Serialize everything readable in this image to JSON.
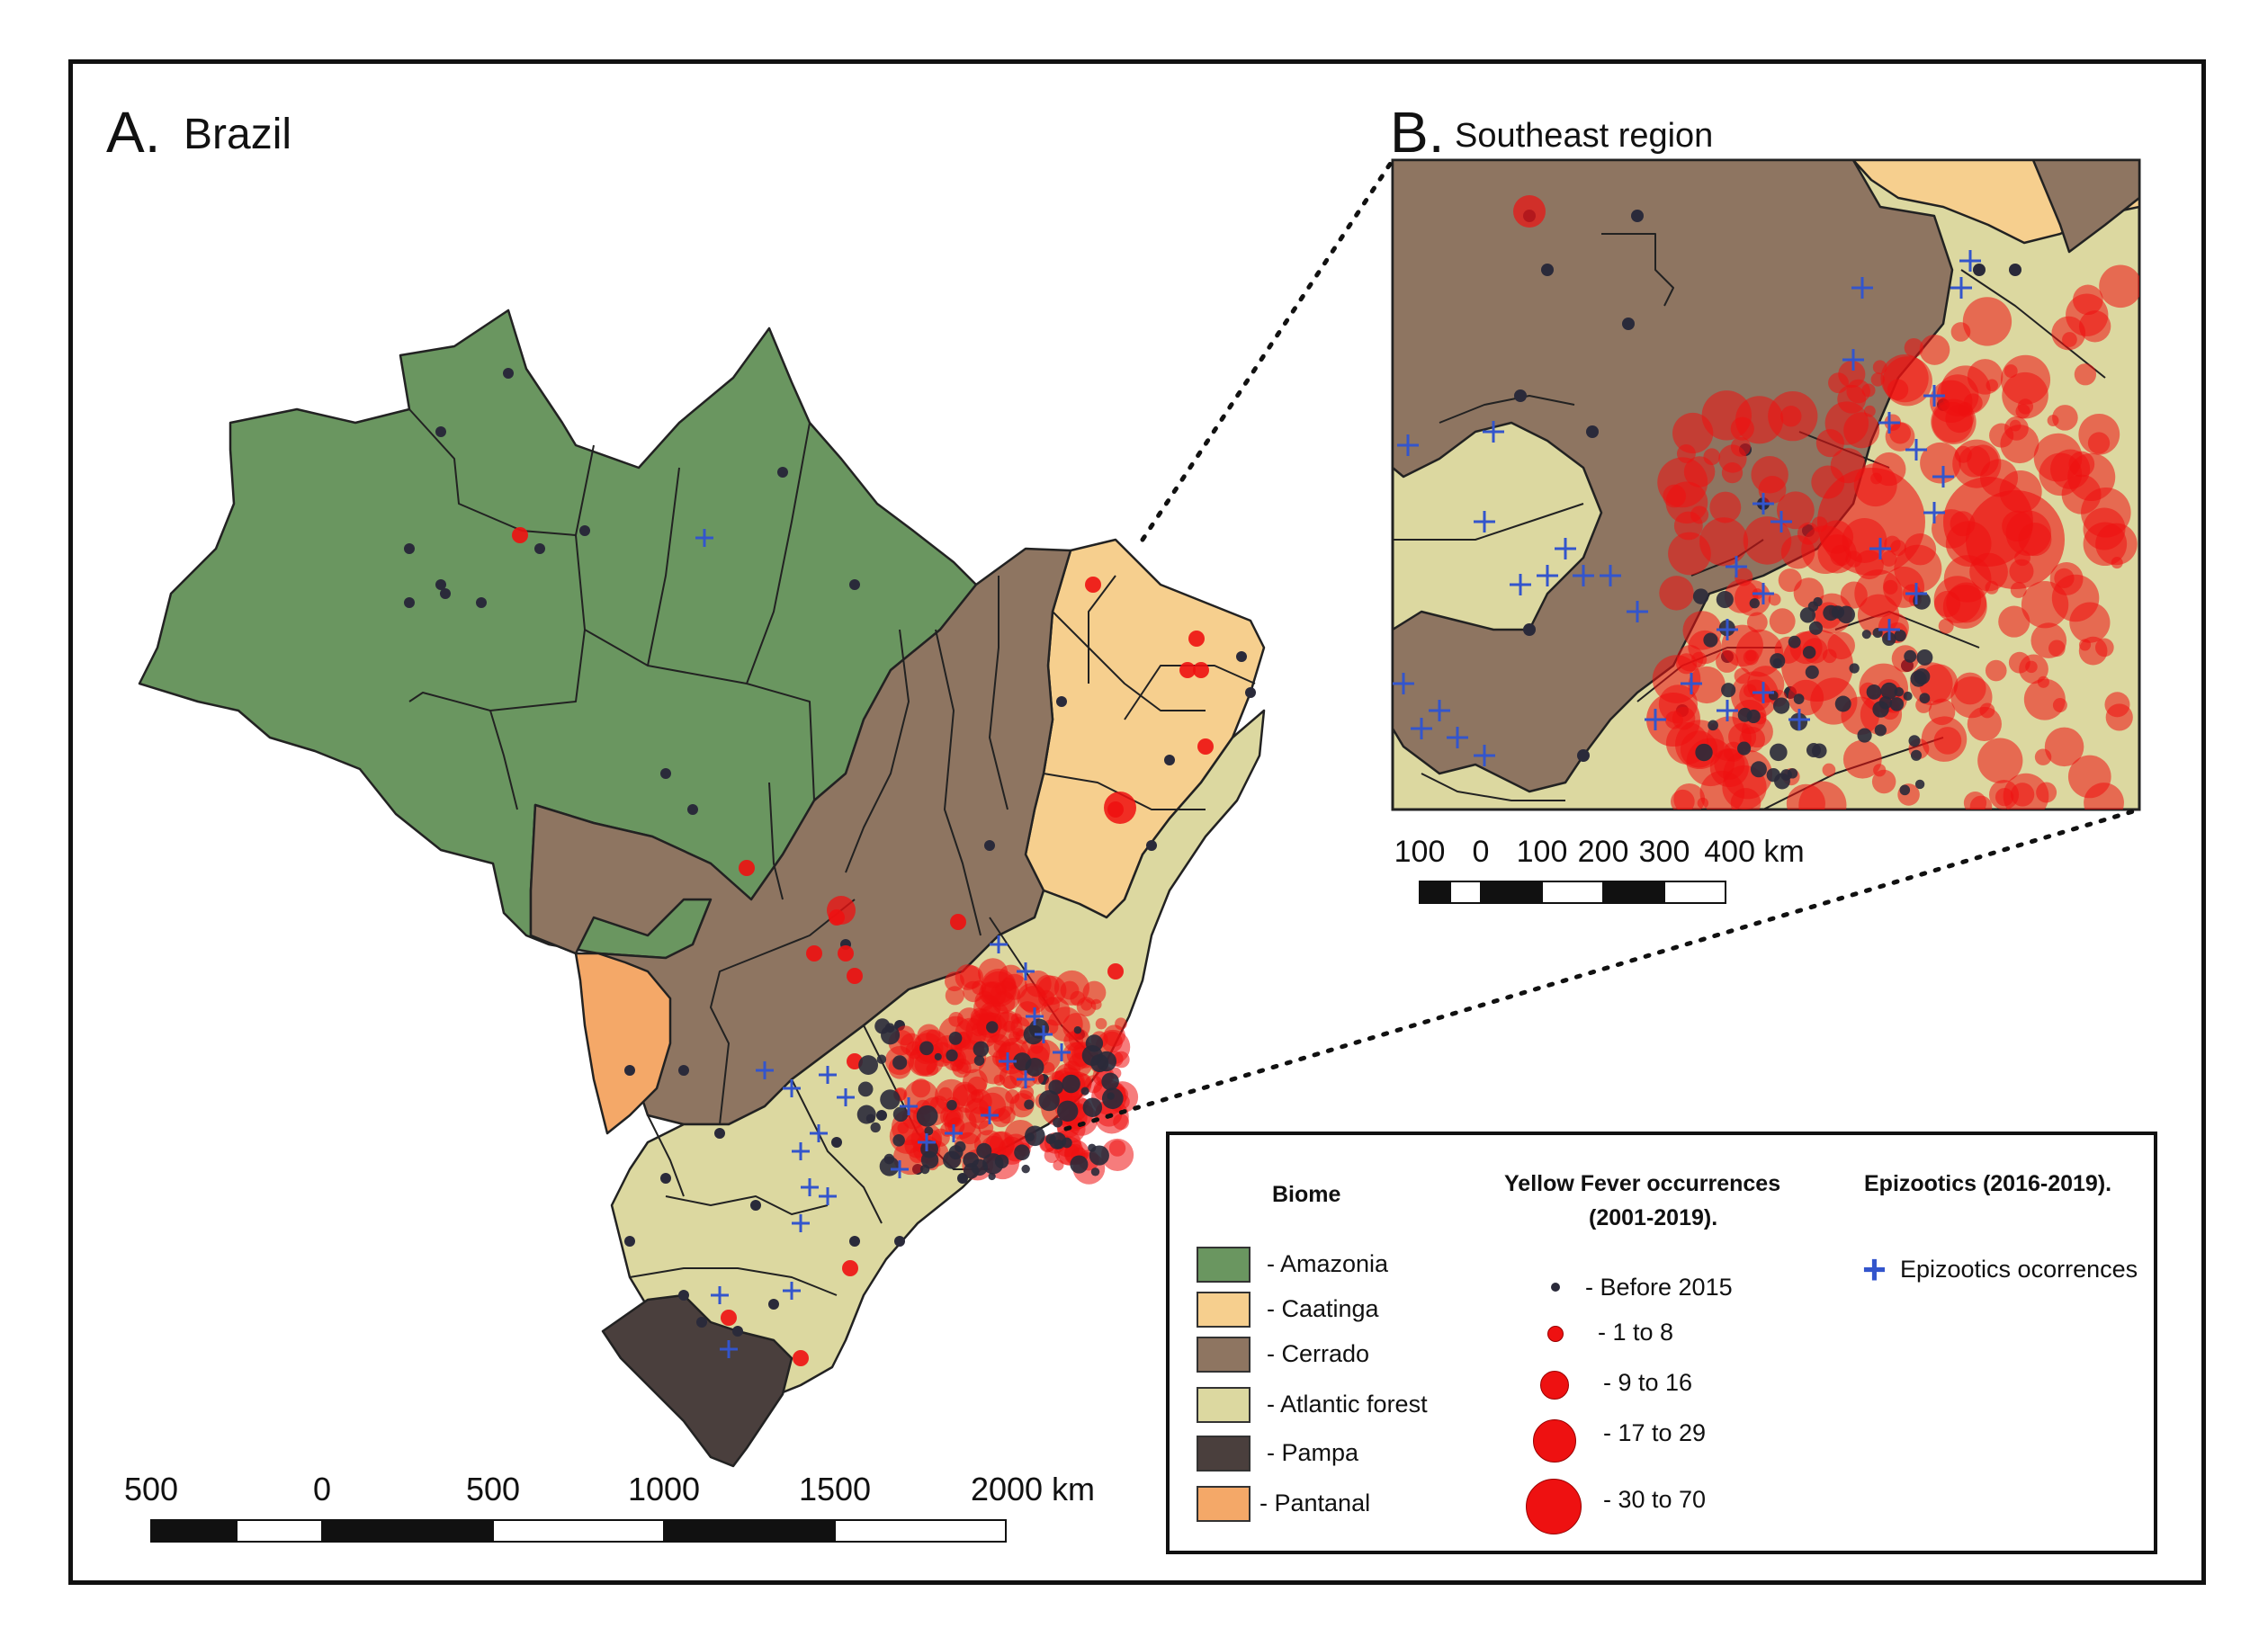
{
  "panel_a": {
    "letter": "A.",
    "name": "Brazil"
  },
  "panel_b": {
    "letter": "B.",
    "name": "Southeast region"
  },
  "scale_main": {
    "labels": [
      "500",
      "0",
      "500",
      "1000",
      "1500",
      "2000 km"
    ]
  },
  "scale_inset": {
    "labels": [
      "100",
      "0",
      "100",
      "200",
      "300",
      "400 km"
    ]
  },
  "colors": {
    "amazonia": "#6a9660",
    "caatinga": "#f6cf8e",
    "cerrado": "#8e7561",
    "atlantic_forest": "#dcd8a0",
    "pampa": "#4a3f3d",
    "pantanal": "#f4a868",
    "occurrence": "#ee1111",
    "before_2015": "#2a2a3a",
    "epizootic": "#3355cc"
  },
  "legend": {
    "biome_header": "Biome",
    "biomes": [
      {
        "label": "- Amazonia",
        "color": "#6a9660"
      },
      {
        "label": "- Caatinga",
        "color": "#f6cf8e"
      },
      {
        "label": "- Cerrado",
        "color": "#8e7561"
      },
      {
        "label": "- Atlantic forest",
        "color": "#dcd8a0"
      },
      {
        "label": "- Pampa",
        "color": "#4a3f3d"
      },
      {
        "label": "- Pantanal",
        "color": "#f4a868"
      }
    ],
    "yf_header_1": "Yellow Fever occurrences",
    "yf_header_2": "(2001-2019).",
    "yf_classes": [
      {
        "label": "- Before 2015"
      },
      {
        "label": "- 1 to 8"
      },
      {
        "label": "- 9 to 16"
      },
      {
        "label": "- 17 to 29"
      },
      {
        "label": "- 30 to 70"
      }
    ],
    "epi_header": "Epizootics  (2016-2019).",
    "epi_label": "Epizootics ocorrences"
  }
}
